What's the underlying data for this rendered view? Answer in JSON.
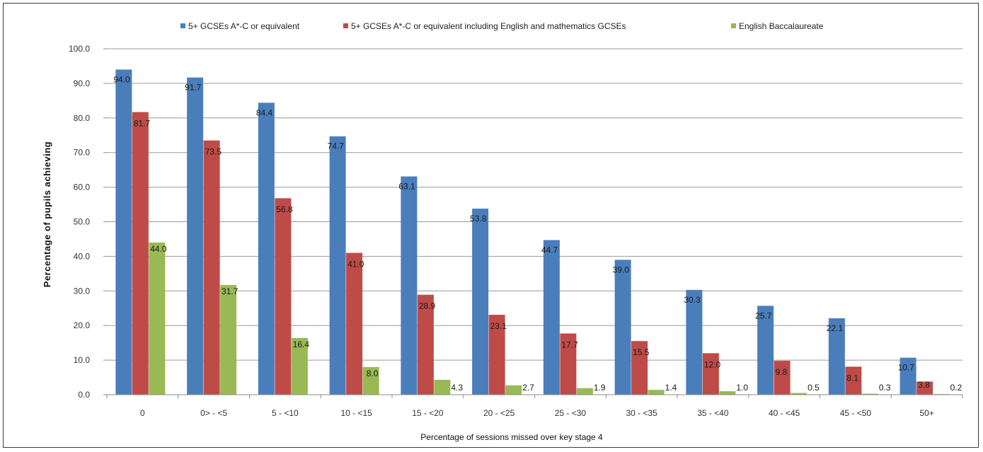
{
  "chart_data": {
    "type": "bar",
    "title": "",
    "xlabel": "Percentage of sessions missed over key stage 4",
    "ylabel": "Percentage of pupils achieving",
    "ylim": [
      0,
      100
    ],
    "yticks": [
      "0.0",
      "10.0",
      "20.0",
      "30.0",
      "40.0",
      "50.0",
      "60.0",
      "70.0",
      "80.0",
      "90.0",
      "100.0"
    ],
    "grid": true,
    "legend_position": "top",
    "categories": [
      "0",
      "0> - <5",
      "5 - <10",
      "10 - <15",
      "15 - <20",
      "20 - <25",
      "25 - <30",
      "30 - <35",
      "35 - <40",
      "40 - <45",
      "45 - <50",
      "50+"
    ],
    "series": [
      {
        "name": "5+ GCSEs A*-C or equivalent",
        "color": "#4a7ebb",
        "values": [
          94.0,
          91.7,
          84.4,
          74.7,
          63.1,
          53.8,
          44.7,
          39.0,
          30.3,
          25.7,
          22.1,
          10.7
        ],
        "labels": [
          "94.0",
          "91.7",
          "84.4",
          "74.7",
          "63.1",
          "53.8",
          "44.7",
          "39.0",
          "30.3",
          "25.7",
          "22.1",
          "10.7"
        ]
      },
      {
        "name": "5+ GCSEs A*-C or equivalent including English and mathematics GCSEs",
        "color": "#be4b48",
        "values": [
          81.7,
          73.5,
          56.8,
          41.0,
          28.9,
          23.1,
          17.7,
          15.5,
          12.0,
          9.8,
          8.1,
          3.8
        ],
        "labels": [
          "81.7",
          "73.5",
          "56.8",
          "41.0",
          "28.9",
          "23.1",
          "17.7",
          "15.5",
          "12.0",
          "9.8",
          "8.1",
          "3.8"
        ]
      },
      {
        "name": "English Baccalaureate",
        "color": "#98b954",
        "values": [
          44.0,
          31.7,
          16.4,
          8.0,
          4.3,
          2.7,
          1.9,
          1.4,
          1.0,
          0.5,
          0.3,
          0.2
        ],
        "labels": [
          "44.0",
          "31.7",
          "16.4",
          "8.0",
          "4.3",
          "2.7",
          "1.9",
          "1.4",
          "1.0",
          "0.5",
          "0.3",
          "0.2"
        ]
      }
    ]
  }
}
